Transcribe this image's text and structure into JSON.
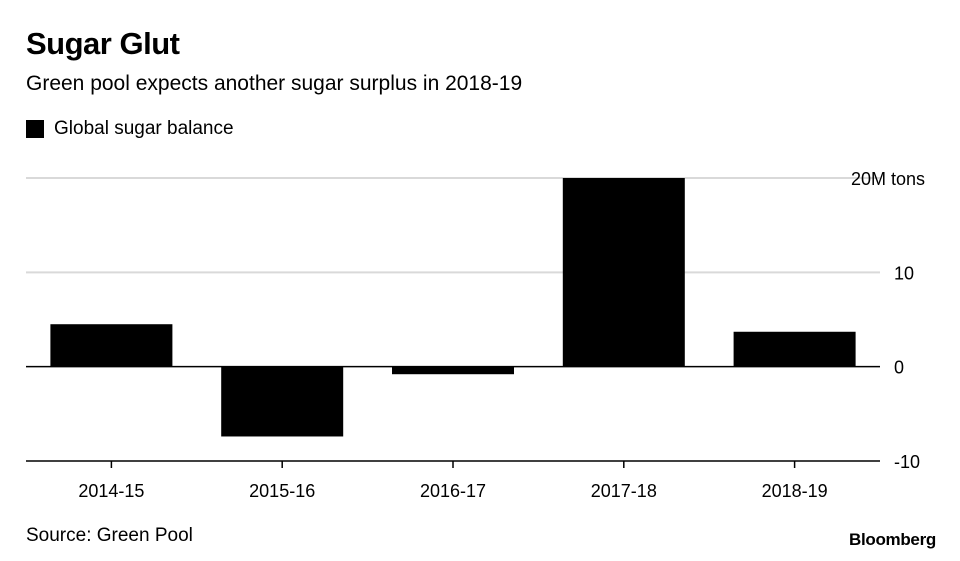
{
  "chart_data": {
    "type": "bar",
    "title": "Sugar Glut",
    "subtitle": "Green pool expects another sugar surplus in 2018-19",
    "categories": [
      "2014-15",
      "2015-16",
      "2016-17",
      "2017-18",
      "2018-19"
    ],
    "series": [
      {
        "name": "Global sugar balance",
        "values": [
          4.5,
          -7.4,
          -0.8,
          20.0,
          3.7
        ]
      }
    ],
    "ylim": [
      -10,
      20
    ],
    "yticks": [
      -10,
      0,
      10,
      20
    ],
    "ytick_labels": [
      "-10",
      "0",
      "10",
      "20M tons"
    ],
    "xlabel": "",
    "ylabel": "",
    "grid": true,
    "legend_position": "top-left",
    "colors": {
      "bar": "#000000",
      "grid": "#d9d9d9",
      "zero_line": "#000000"
    }
  },
  "footer": {
    "source": "Source: Green Pool",
    "brand": "Bloomberg"
  }
}
